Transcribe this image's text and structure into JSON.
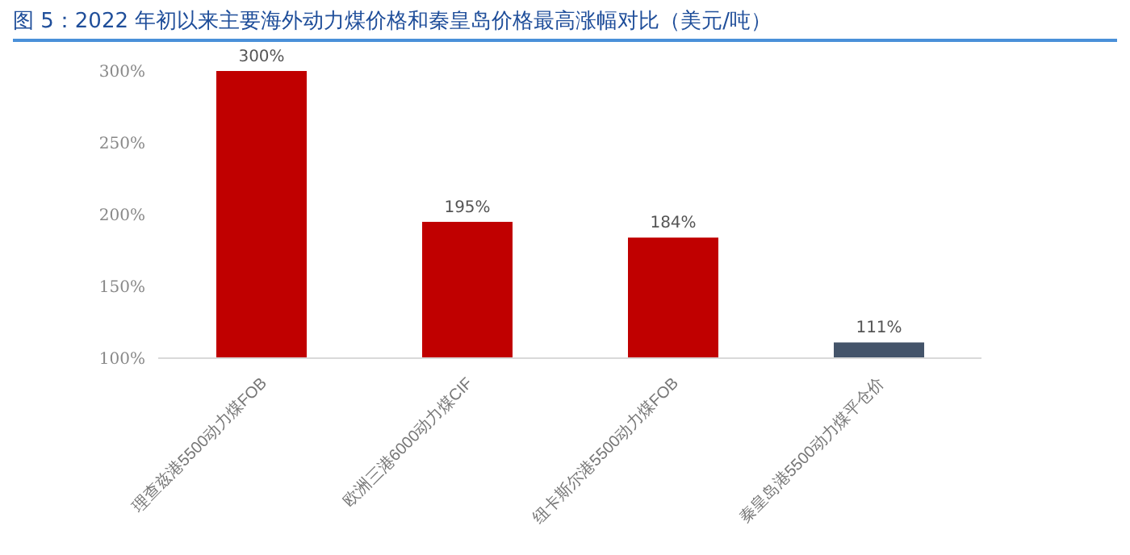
{
  "chart_data": {
    "type": "bar",
    "title": "图 5：2022 年初以来主要海外动力煤价格和秦皇岛价格最高涨幅对比（美元/吨）",
    "categories": [
      "理查兹港5500动力煤FOB",
      "欧洲三港6000动力煤CIF",
      "纽卡斯尔港5500动力煤FOB",
      "秦皇岛港5500动力煤平仓价"
    ],
    "values": [
      300,
      195,
      184,
      111
    ],
    "colors": [
      "#c00000",
      "#c00000",
      "#c00000",
      "#44546a"
    ],
    "value_labels": [
      "300%",
      "195%",
      "184%",
      "111%"
    ],
    "ylim": [
      100,
      300
    ],
    "yticks": [
      {
        "value": 100,
        "label": "100%"
      },
      {
        "value": 150,
        "label": "150%"
      },
      {
        "value": 200,
        "label": "200%"
      },
      {
        "value": 250,
        "label": "250%"
      },
      {
        "value": 300,
        "label": "300%"
      }
    ],
    "grid": false,
    "legend": false
  }
}
